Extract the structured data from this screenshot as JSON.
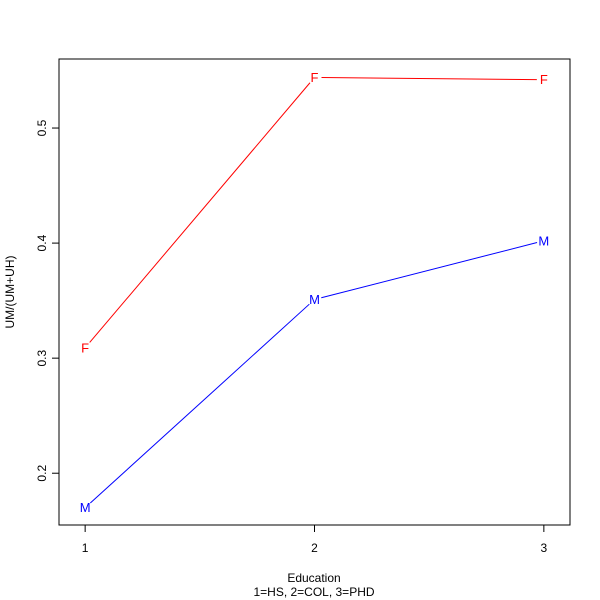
{
  "chart_data": {
    "type": "line",
    "x": [
      1,
      2,
      3
    ],
    "xlabel": "Education",
    "xlabel_sub": "1=HS, 2=COL, 3=PHD",
    "ylabel": "UM/(UM+UH)",
    "xlim": [
      0.886,
      3.114
    ],
    "ylim": [
      0.155,
      0.56
    ],
    "xticks": [
      1,
      2,
      3
    ],
    "yticks": [
      0.2,
      0.3,
      0.4,
      0.5
    ],
    "ytick_labels": [
      "0.2",
      "0.3",
      "0.4",
      "0.5"
    ],
    "xtick_labels": [
      "1",
      "2",
      "3"
    ],
    "grid": false,
    "series": [
      {
        "marker": "F",
        "color": "#ff0000",
        "values": [
          0.309,
          0.544,
          0.542
        ]
      },
      {
        "marker": "M",
        "color": "#0000ff",
        "values": [
          0.17,
          0.351,
          0.402
        ]
      }
    ]
  }
}
